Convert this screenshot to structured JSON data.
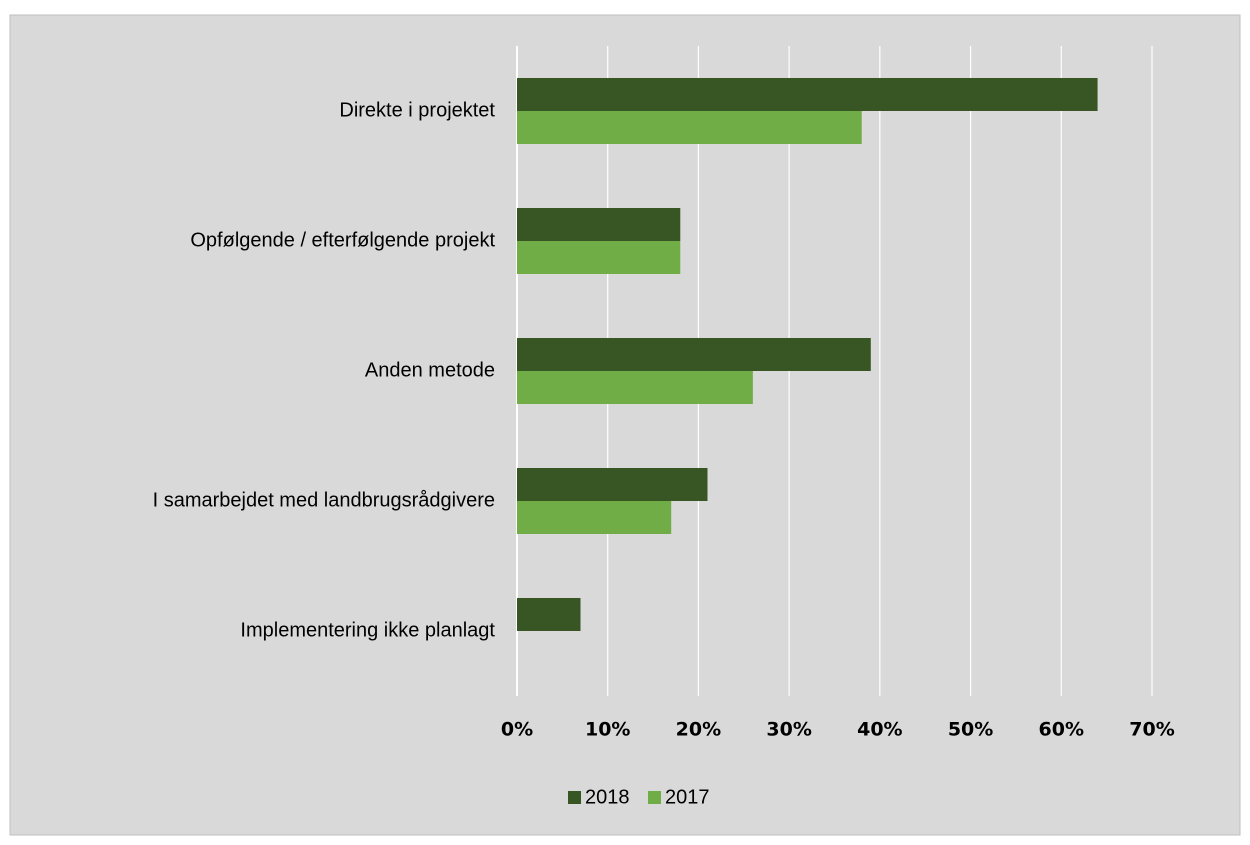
{
  "chart_data": {
    "type": "hbar",
    "categories": [
      "Direkte i projektet",
      "Opfølgende / efterfølgende projekt",
      "Anden metode",
      "I samarbejdet med landbrugsrådgivere",
      "Implementering ikke planlagt"
    ],
    "series": [
      {
        "name": "2018",
        "color": "#375623",
        "values": [
          64,
          18,
          39,
          21,
          7
        ]
      },
      {
        "name": "2017",
        "color": "#70ad47",
        "values": [
          38,
          18,
          26,
          17,
          0
        ]
      }
    ],
    "xlim": [
      0,
      70
    ],
    "xticks": [
      {
        "value": 0,
        "label": "0%"
      },
      {
        "value": 10,
        "label": "10%"
      },
      {
        "value": 20,
        "label": "20%"
      },
      {
        "value": 30,
        "label": "30%"
      },
      {
        "value": 40,
        "label": "40%"
      },
      {
        "value": 50,
        "label": "50%"
      },
      {
        "value": 60,
        "label": "60%"
      },
      {
        "value": 70,
        "label": "70%"
      }
    ],
    "grid": true,
    "legend": "bottom"
  }
}
